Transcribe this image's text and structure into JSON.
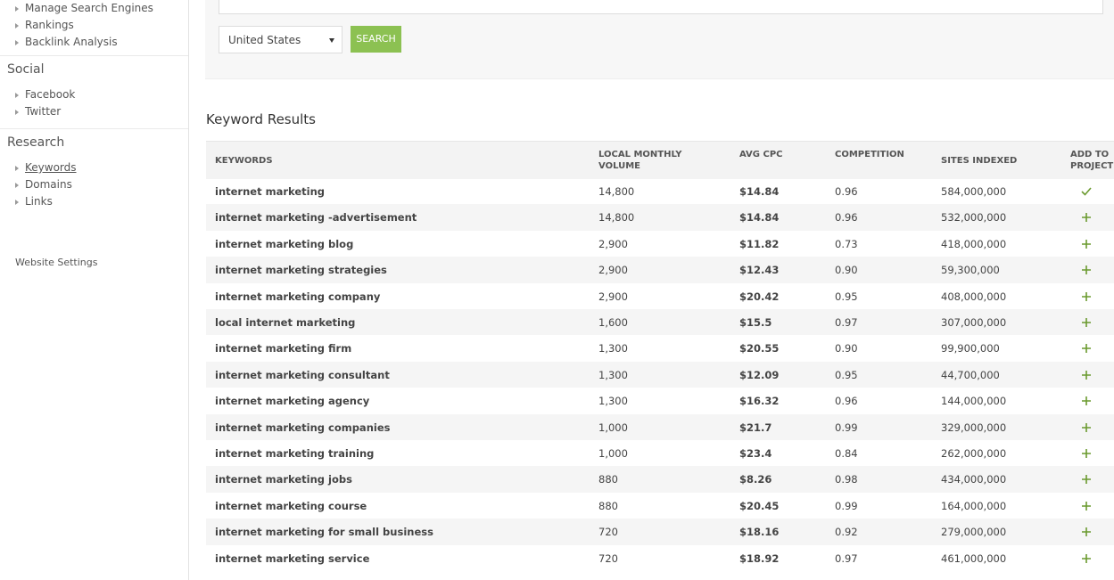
{
  "sidebar": {
    "top_links": [
      "Manage Search Engines",
      "Rankings",
      "Backlink Analysis"
    ],
    "sections": [
      {
        "title": "Social",
        "links": [
          "Facebook",
          "Twitter"
        ]
      },
      {
        "title": "Research",
        "links": [
          "Keywords",
          "Domains",
          "Links"
        ]
      }
    ],
    "settings": "Website Settings"
  },
  "search": {
    "country": "United States",
    "button": "SEARCH"
  },
  "results": {
    "title": "Keyword Results",
    "columns": [
      "KEYWORDS",
      "LOCAL MONTHLY VOLUME",
      "AVG CPC",
      "COMPETITION",
      "SITES INDEXED",
      "ADD TO PROJECT"
    ],
    "rows": [
      [
        "internet marketing",
        "14,800",
        "$14.84",
        "0.96",
        "584,000,000"
      ],
      [
        "internet marketing -advertisement",
        "14,800",
        "$14.84",
        "0.96",
        "532,000,000"
      ],
      [
        "internet marketing blog",
        "2,900",
        "$11.82",
        "0.73",
        "418,000,000"
      ],
      [
        "internet marketing strategies",
        "2,900",
        "$12.43",
        "0.90",
        "59,300,000"
      ],
      [
        "internet marketing company",
        "2,900",
        "$20.42",
        "0.95",
        "408,000,000"
      ],
      [
        "local internet marketing",
        "1,600",
        "$15.5",
        "0.97",
        "307,000,000"
      ],
      [
        "internet marketing firm",
        "1,300",
        "$20.55",
        "0.90",
        "99,900,000"
      ],
      [
        "internet marketing consultant",
        "1,300",
        "$12.09",
        "0.95",
        "44,700,000"
      ],
      [
        "internet marketing agency",
        "1,300",
        "$16.32",
        "0.96",
        "144,000,000"
      ],
      [
        "internet marketing companies",
        "1,000",
        "$21.7",
        "0.99",
        "329,000,000"
      ],
      [
        "internet marketing training",
        "1,000",
        "$23.4",
        "0.84",
        "262,000,000"
      ],
      [
        "internet marketing jobs",
        "880",
        "$8.26",
        "0.98",
        "434,000,000"
      ],
      [
        "internet marketing course",
        "880",
        "$20.45",
        "0.99",
        "164,000,000"
      ],
      [
        "internet marketing for small business",
        "720",
        "$18.16",
        "0.92",
        "279,000,000"
      ],
      [
        "internet marketing service",
        "720",
        "$18.92",
        "0.97",
        "461,000,000"
      ]
    ]
  }
}
